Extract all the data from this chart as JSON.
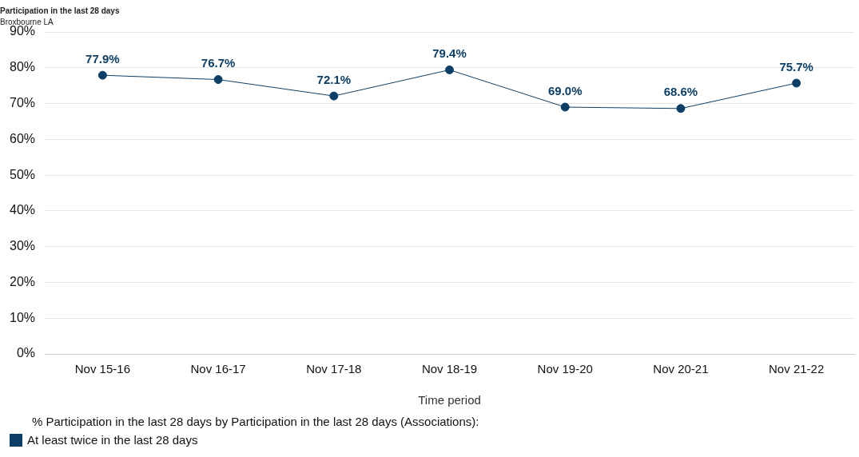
{
  "chart_data": {
    "type": "line",
    "title": "Participation in the last 28 days",
    "subtitle": "Broxbourne LA",
    "xlabel": "Time period",
    "legend_title": "% Participation in the last 28 days by Participation in the last 28 days (Associations):",
    "categories": [
      "Nov 15-16",
      "Nov 16-17",
      "Nov 17-18",
      "Nov 18-19",
      "Nov 19-20",
      "Nov 20-21",
      "Nov 21-22"
    ],
    "series": [
      {
        "name": "At least twice in the last 28 days",
        "color": "#0d3f66",
        "values": [
          77.9,
          76.7,
          72.1,
          79.4,
          69.0,
          68.6,
          75.7
        ],
        "value_labels": [
          "77.9%",
          "76.7%",
          "72.1%",
          "79.4%",
          "69.0%",
          "68.6%",
          "75.7%"
        ]
      }
    ],
    "ylim": [
      0,
      90
    ],
    "yticks": [
      {
        "value": 0,
        "label": "0%"
      },
      {
        "value": 10,
        "label": "10%"
      },
      {
        "value": 20,
        "label": "20%"
      },
      {
        "value": 30,
        "label": "30%"
      },
      {
        "value": 40,
        "label": "40%"
      },
      {
        "value": 50,
        "label": "50%"
      },
      {
        "value": 60,
        "label": "60%"
      },
      {
        "value": 70,
        "label": "70%"
      },
      {
        "value": 80,
        "label": "80%"
      },
      {
        "value": 90,
        "label": "90%"
      }
    ],
    "grid": "y",
    "legend": "bottom left",
    "marker": "circle",
    "line_style": "solid"
  }
}
